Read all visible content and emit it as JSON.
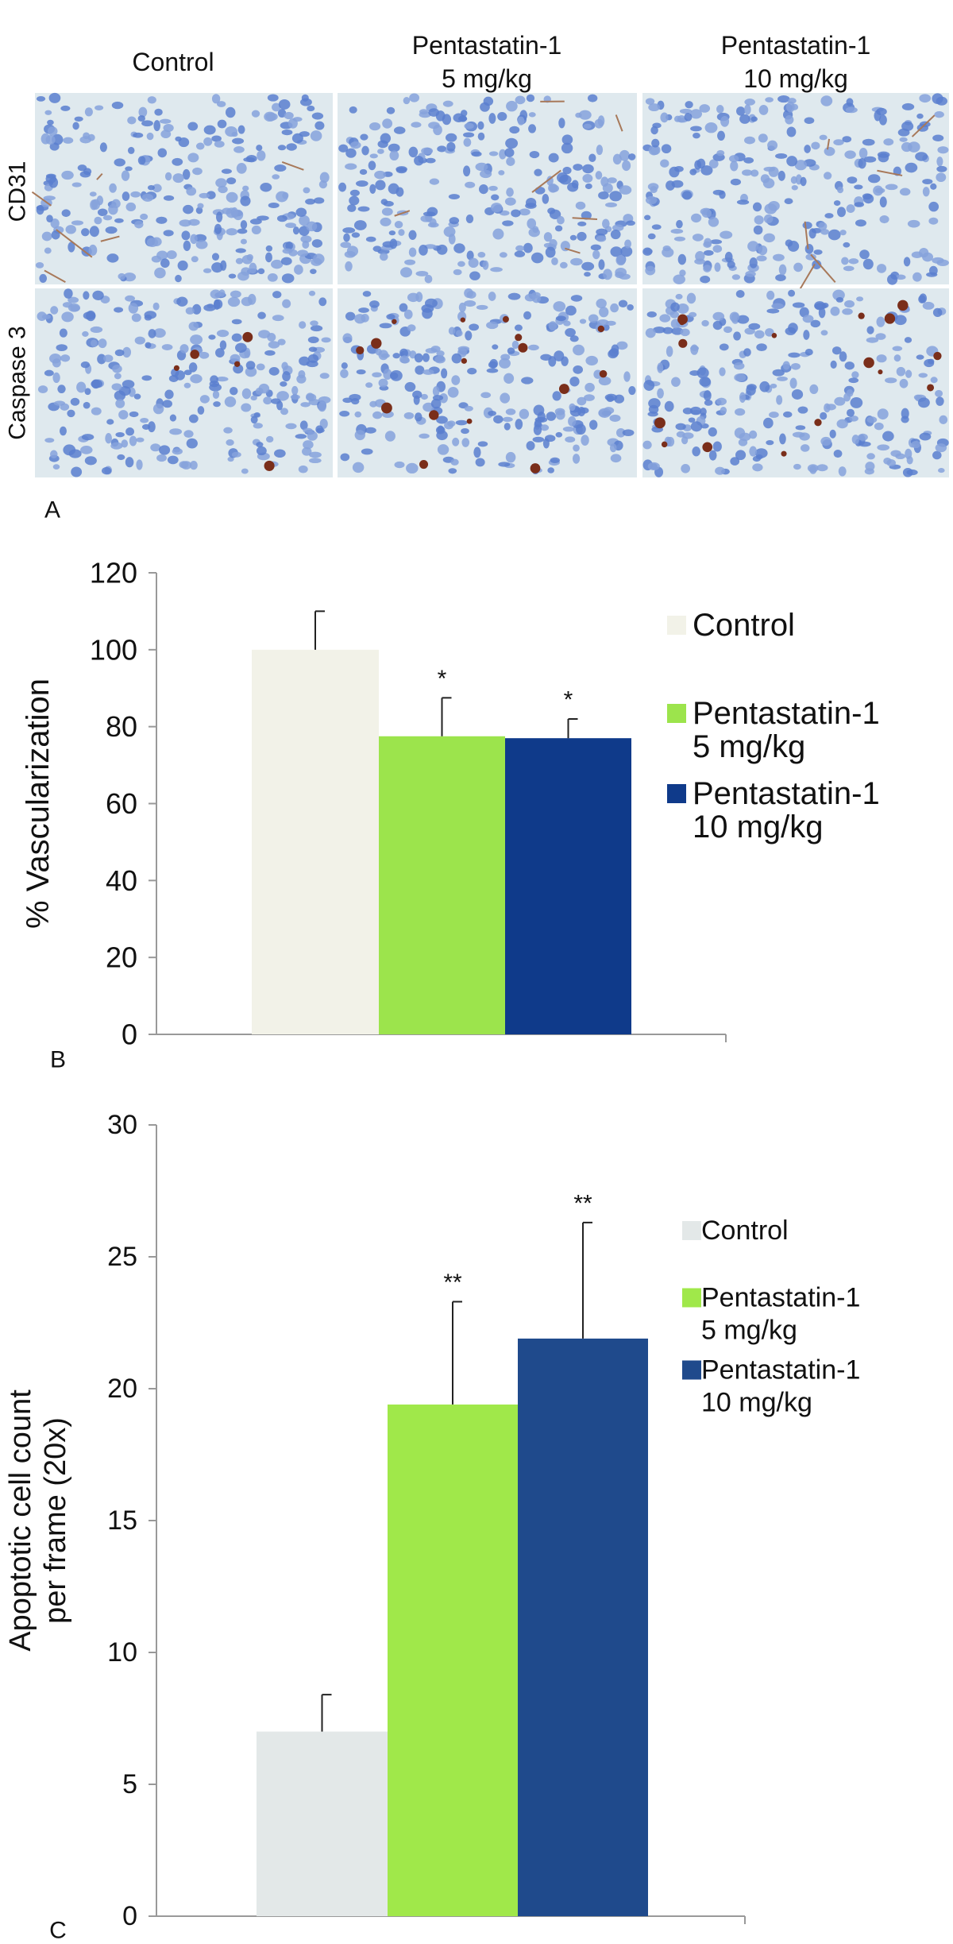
{
  "panel_a": {
    "label": "A",
    "column_headers": [
      "Control",
      "Pentastatin-1\n5 mg/kg",
      "Pentastatin-1\n10 mg/kg"
    ],
    "row_labels": [
      "CD31",
      "Caspase 3"
    ]
  },
  "chart_data": [
    {
      "type": "bar",
      "panel_label": "B",
      "y_label": "% Vascularization",
      "categories": [
        null
      ],
      "ylim": [
        0,
        120
      ],
      "yticks": [
        0,
        20,
        40,
        60,
        80,
        100,
        120
      ],
      "series": [
        {
          "name": "Control",
          "color": "#f2f2e8",
          "values": [
            100
          ],
          "errors": [
            10
          ]
        },
        {
          "name": "Pentastatin-1\n5 mg/kg",
          "color": "#9ce44c",
          "values": [
            77.5
          ],
          "errors": [
            10
          ],
          "annotation": "*"
        },
        {
          "name": "Pentastatin-1\n10 mg/kg",
          "color": "#0f3a8a",
          "values": [
            77
          ],
          "errors": [
            5
          ],
          "annotation": "*"
        }
      ]
    },
    {
      "type": "bar",
      "panel_label": "C",
      "y_label": "Apoptotic cell count\nper frame (20x)",
      "categories": [
        null
      ],
      "ylim": [
        0,
        30
      ],
      "yticks": [
        0,
        5,
        10,
        15,
        20,
        25,
        30
      ],
      "series": [
        {
          "name": "Control",
          "color": "#e3e8e8",
          "values": [
            7
          ],
          "errors": [
            1.4
          ]
        },
        {
          "name": "Pentastatin-1\n5 mg/kg",
          "color": "#a0e84a",
          "values": [
            19.4
          ],
          "errors": [
            3.9
          ],
          "annotation": "**"
        },
        {
          "name": "Pentastatin-1\n10 mg/kg",
          "color": "#1f4a8c",
          "values": [
            21.9
          ],
          "errors": [
            4.4
          ],
          "annotation": "**"
        }
      ]
    }
  ]
}
